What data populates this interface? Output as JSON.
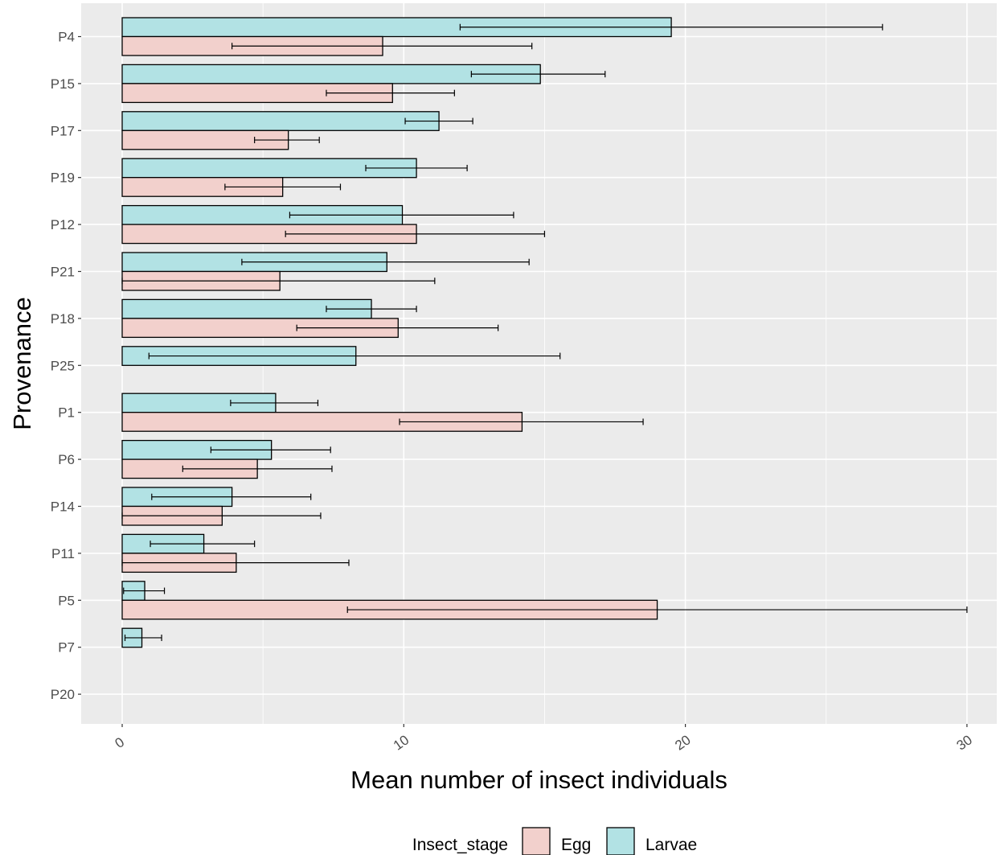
{
  "chart_data": {
    "type": "bar",
    "orientation": "horizontal",
    "xlabel": "Mean number of insect individuals",
    "ylabel": "Provenance",
    "xlim": [
      -1.5,
      31
    ],
    "x_ticks": [
      0,
      10,
      20,
      30
    ],
    "grid": true,
    "categories": [
      "P4",
      "P15",
      "P17",
      "P19",
      "P12",
      "P21",
      "P18",
      "P25",
      "P1",
      "P6",
      "P14",
      "P11",
      "P5",
      "P7",
      "P20"
    ],
    "series": [
      {
        "name": "Larvae",
        "color": "#b2e2e4",
        "values": [
          19.5,
          14.85,
          11.25,
          10.45,
          9.95,
          9.4,
          8.85,
          8.3,
          5.45,
          5.3,
          3.9,
          2.9,
          0.8,
          0.7,
          0
        ],
        "error_low": [
          12.0,
          12.4,
          10.05,
          8.65,
          5.95,
          4.25,
          7.25,
          0.95,
          3.85,
          3.15,
          1.05,
          1.0,
          0.05,
          0.1,
          0
        ],
        "error_high": [
          27.0,
          17.15,
          12.45,
          12.25,
          13.9,
          14.45,
          10.45,
          15.55,
          6.95,
          7.4,
          6.7,
          4.7,
          1.5,
          1.4,
          0
        ]
      },
      {
        "name": "Egg",
        "color": "#f2d0cc",
        "values": [
          9.25,
          9.6,
          5.9,
          5.7,
          10.45,
          5.6,
          9.8,
          0,
          14.2,
          4.8,
          3.55,
          4.05,
          19.0,
          0,
          0
        ],
        "error_low": [
          3.9,
          7.25,
          4.7,
          3.65,
          5.8,
          0,
          6.2,
          0,
          9.85,
          2.15,
          0,
          0,
          8.0,
          0,
          0
        ],
        "error_high": [
          14.55,
          11.8,
          7.0,
          7.75,
          15.0,
          11.1,
          13.35,
          0,
          18.5,
          7.45,
          7.05,
          8.05,
          30.0,
          0,
          0
        ]
      }
    ],
    "legend": {
      "position": "bottom",
      "title": "Insect_stage",
      "entries": [
        "Egg",
        "Larvae"
      ]
    },
    "colors": {
      "panel": "#ebebeb",
      "grid": "#ffffff",
      "bar_outline": "#000000"
    }
  }
}
